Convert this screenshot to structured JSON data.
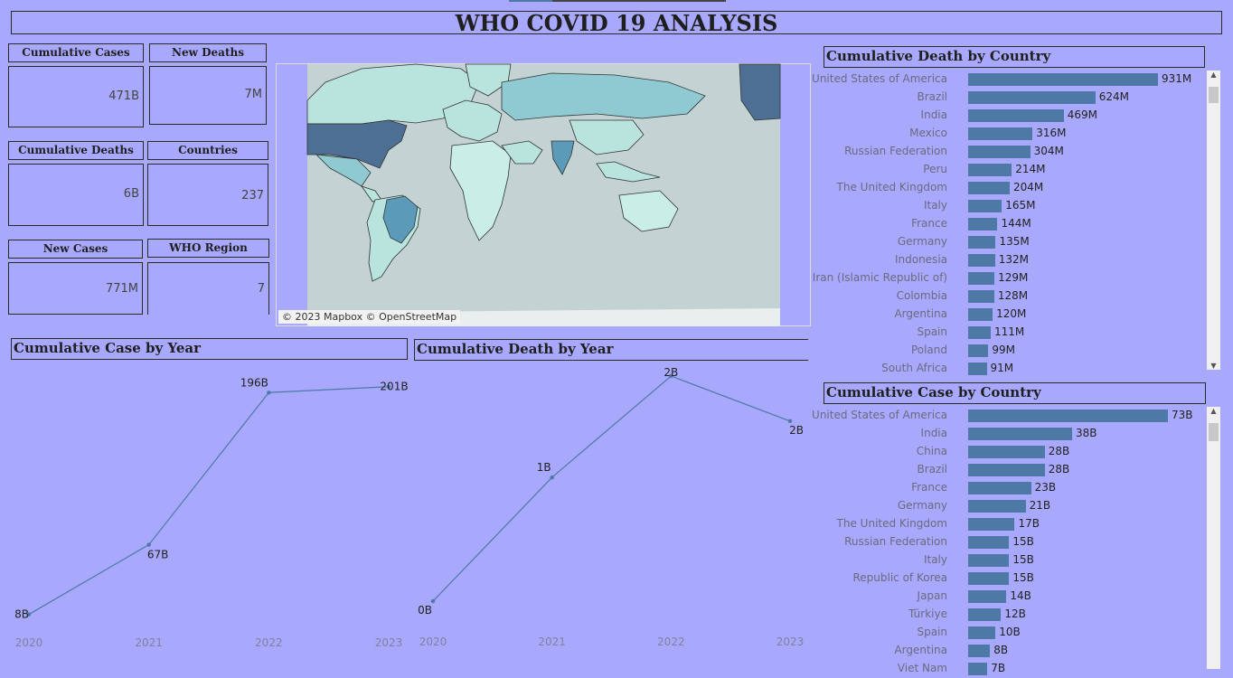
{
  "title": "WHO COVID 19 ANALYSIS",
  "kpis": {
    "cumulative_cases": {
      "label": "Cumulative Cases",
      "value": "471B"
    },
    "new_deaths": {
      "label": "New Deaths",
      "value": "7M"
    },
    "cumulative_deaths": {
      "label": "Cumulative Deaths",
      "value": "6B"
    },
    "countries": {
      "label": "Countries",
      "value": "237"
    },
    "new_cases": {
      "label": "New Cases",
      "value": "771M"
    },
    "who_region": {
      "label": "WHO Region",
      "value": "7"
    }
  },
  "map": {
    "credit": "© 2023 Mapbox © OpenStreetMap"
  },
  "colors": {
    "bar": "#4e79a7",
    "line": "#4e79a7",
    "background": "#a8a8fd"
  },
  "chart_data": [
    {
      "type": "line",
      "title": "Cumulative Case by Year",
      "x": [
        "2020",
        "2021",
        "2022",
        "2023"
      ],
      "values": [
        8,
        67,
        196,
        201
      ],
      "labels": [
        "8B",
        "67B",
        "196B",
        "201B"
      ],
      "unit": "B",
      "ylim": [
        0,
        210
      ],
      "grid": false
    },
    {
      "type": "line",
      "title": "Cumulative Death by Year",
      "x": [
        "2020",
        "2021",
        "2022",
        "2023"
      ],
      "values": [
        0.2,
        1.3,
        2.2,
        1.8
      ],
      "labels": [
        "0B",
        "1B",
        "2B",
        "2B"
      ],
      "unit": "B",
      "grid": false
    },
    {
      "type": "bar",
      "title": "Cumulative Death by Country",
      "orientation": "horizontal",
      "categories": [
        "United States of America",
        "Brazil",
        "India",
        "Mexico",
        "Russian Federation",
        "Peru",
        "The United Kingdom",
        "Italy",
        "France",
        "Germany",
        "Indonesia",
        "Iran (Islamic Republic of)",
        "Colombia",
        "Argentina",
        "Spain",
        "Poland",
        "South Africa"
      ],
      "values": [
        931,
        624,
        469,
        316,
        304,
        214,
        204,
        165,
        144,
        135,
        132,
        129,
        128,
        120,
        111,
        99,
        91
      ],
      "labels": [
        "931M",
        "624M",
        "469M",
        "316M",
        "304M",
        "214M",
        "204M",
        "165M",
        "144M",
        "135M",
        "132M",
        "129M",
        "128M",
        "120M",
        "111M",
        "99M",
        "91M"
      ],
      "unit": "M"
    },
    {
      "type": "bar",
      "title": "Cumulative Case by Country",
      "orientation": "horizontal",
      "categories": [
        "United States of America",
        "India",
        "China",
        "Brazil",
        "France",
        "Germany",
        "The United Kingdom",
        "Russian Federation",
        "Italy",
        "Republic of Korea",
        "Japan",
        "Türkiye",
        "Spain",
        "Argentina",
        "Viet Nam"
      ],
      "values": [
        73,
        38,
        28,
        28,
        23,
        21,
        17,
        15,
        15,
        15,
        14,
        12,
        10,
        8,
        7
      ],
      "labels": [
        "73B",
        "38B",
        "28B",
        "28B",
        "23B",
        "21B",
        "17B",
        "15B",
        "15B",
        "15B",
        "14B",
        "12B",
        "10B",
        "8B",
        "7B"
      ],
      "unit": "B"
    }
  ]
}
